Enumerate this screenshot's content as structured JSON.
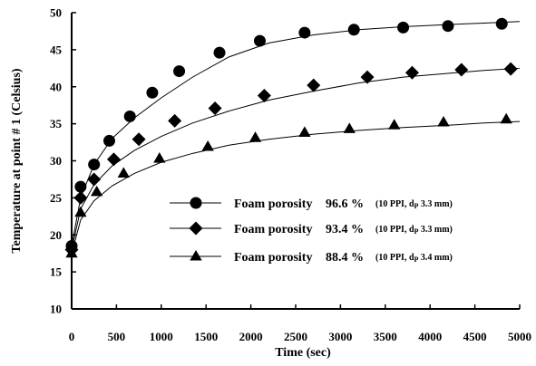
{
  "chart_data": {
    "type": "line",
    "xlabel": "Time (sec)",
    "ylabel": "Temperature at point # 1 (Celsius)",
    "xlim": [
      0,
      5000
    ],
    "ylim": [
      10,
      50
    ],
    "xticks": [
      0,
      500,
      1000,
      1500,
      2000,
      2500,
      3000,
      3500,
      4000,
      4500,
      5000
    ],
    "yticks": [
      10,
      15,
      20,
      25,
      30,
      35,
      40,
      45,
      50
    ],
    "grid": false,
    "legend_position": "lower-right",
    "series": [
      {
        "name": "Foam porosity 96.6 % (10 PPI, dP 3.3 mm)",
        "label_main": "Foam porosity",
        "label_value": "96.6 %",
        "label_detail_pre": "(10 PPI, d",
        "label_sub": "P",
        "label_detail_post": " 3.3 mm)",
        "marker": "circle",
        "x": [
          0,
          100,
          250,
          420,
          650,
          900,
          1200,
          1650,
          2100,
          2600,
          3150,
          3700,
          4200,
          4800
        ],
        "y": [
          18.5,
          26.5,
          29.5,
          32.7,
          36.0,
          39.2,
          42.1,
          44.6,
          46.2,
          47.3,
          47.7,
          48.0,
          48.2,
          48.5
        ],
        "fit": [
          18.5,
          25,
          29.5,
          33,
          35.8,
          38.5,
          41.3,
          44.0,
          45.9,
          47.0,
          47.7,
          48.1,
          48.4,
          48.6,
          48.8
        ]
      },
      {
        "name": "Foam porosity 93.4 % (10 PPI, dP 3.3 mm)",
        "label_main": "Foam porosity",
        "label_value": "93.4 %",
        "label_detail_pre": "(10 PPI, d",
        "label_sub": "P",
        "label_detail_post": " 3.3 mm)",
        "marker": "diamond",
        "x": [
          0,
          100,
          250,
          470,
          750,
          1150,
          1600,
          2150,
          2700,
          3300,
          3800,
          4350,
          4900
        ],
        "y": [
          18.0,
          25.0,
          27.5,
          30.2,
          32.9,
          35.4,
          37.1,
          38.8,
          40.2,
          41.3,
          41.9,
          42.3,
          42.4
        ],
        "fit": [
          18,
          23.5,
          26.8,
          29.3,
          31.4,
          33.3,
          35.1,
          36.7,
          38.2,
          39.4,
          40.5,
          41.3,
          41.8,
          42.2,
          42.5
        ]
      },
      {
        "name": "Foam porosity 88.4 % (10 PPI, dP 3.4 mm)",
        "label_main": "Foam porosity",
        "label_value": "88.4 %",
        "label_detail_pre": "(10 PPI, d",
        "label_sub": "P",
        "label_detail_post": " 3.4 mm)",
        "marker": "triangle",
        "x": [
          0,
          100,
          280,
          580,
          980,
          1520,
          2050,
          2600,
          3100,
          3600,
          4150,
          4850
        ],
        "y": [
          17.5,
          23.0,
          25.8,
          28.3,
          30.3,
          31.9,
          33.1,
          33.8,
          34.3,
          34.8,
          35.2,
          35.6
        ],
        "fit": [
          17.5,
          22.0,
          24.6,
          26.6,
          28.3,
          29.8,
          31.0,
          32.1,
          32.9,
          33.6,
          34.1,
          34.5,
          34.8,
          35.1,
          35.3
        ]
      }
    ]
  }
}
